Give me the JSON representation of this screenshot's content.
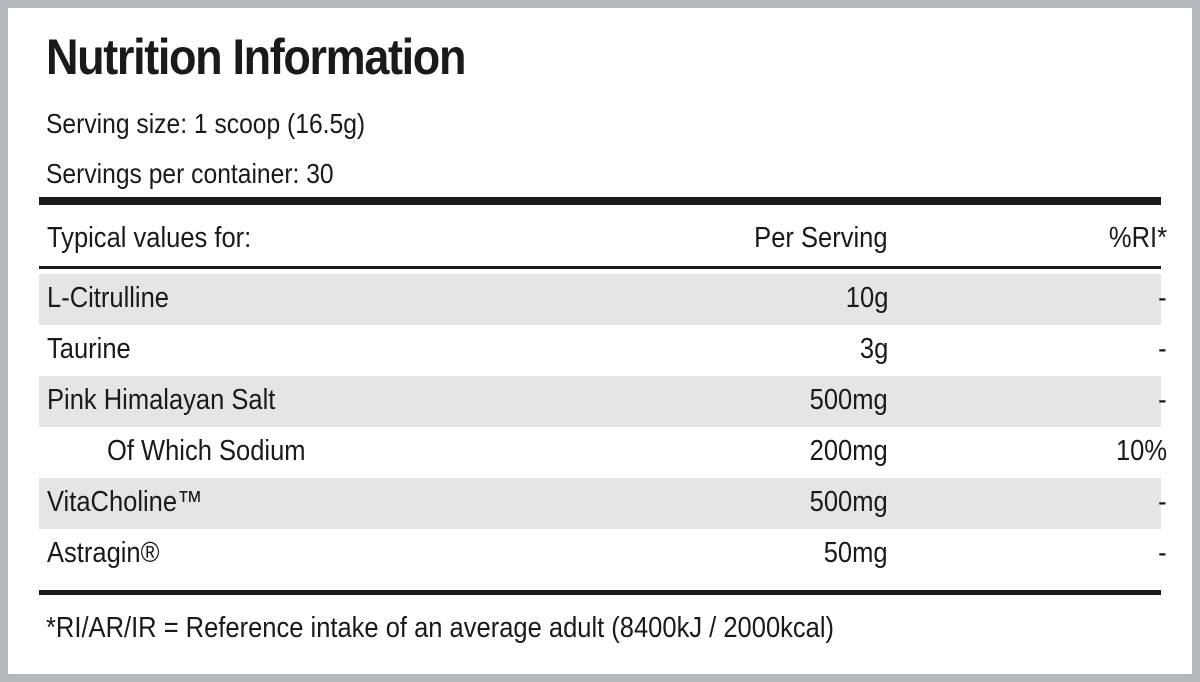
{
  "header": {
    "title": "Nutrition Information",
    "serving_size": "Serving size: 1 scoop (16.5g)",
    "servings_per_container": "Servings per container: 30"
  },
  "table": {
    "columns": [
      "Typical values for:",
      "Per Serving",
      "%RI*"
    ],
    "rows": [
      [
        "L-Citrulline",
        "10g",
        "-"
      ],
      [
        "Taurine",
        "3g",
        "-"
      ],
      [
        "Pink Himalayan Salt",
        "500mg",
        "-"
      ],
      [
        "Of Which Sodium",
        "200mg",
        "10%"
      ],
      [
        "VitaCholine™",
        "500mg",
        "-"
      ],
      [
        "Astragin®",
        "50mg",
        "-"
      ]
    ]
  },
  "footer": "*RI/AR/IR = Reference intake of an average adult (8400kJ / 2000kcal)"
}
